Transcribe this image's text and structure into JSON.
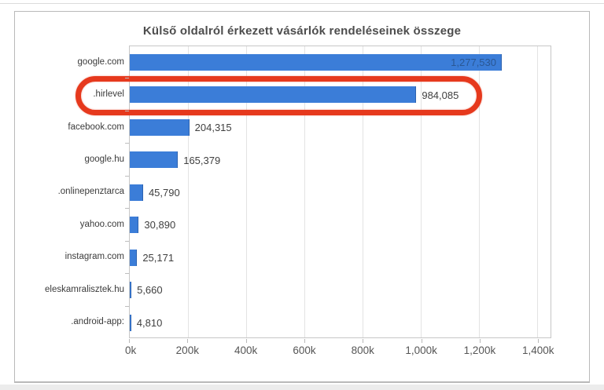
{
  "chart_data": {
    "type": "bar",
    "orientation": "horizontal",
    "title": "Külső oldalról érkezett vásárlók rendeléseinek összege",
    "xlabel": "",
    "ylabel": "",
    "grid": "vertical",
    "legend": "none",
    "xlim": [
      0,
      1400000
    ],
    "categories": [
      "google.com",
      ".hirlevel",
      "facebook.com",
      "google.hu",
      ".onlinepenztarca",
      "yahoo.com",
      "instagram.com",
      "eleskamralisztek.hu",
      ".android-app:"
    ],
    "values": [
      1277530,
      984085,
      204315,
      165379,
      45790,
      30890,
      25171,
      5660,
      4810
    ],
    "value_labels": [
      "1,277,530",
      "984,085",
      "204,315",
      "165,379",
      "45,790",
      "30,890",
      "25,171",
      "5,660",
      "4,810"
    ],
    "x_ticks": [
      {
        "value": 0,
        "label": "0k"
      },
      {
        "value": 200000,
        "label": "200k"
      },
      {
        "value": 400000,
        "label": "400k"
      },
      {
        "value": 600000,
        "label": "600k"
      },
      {
        "value": 800000,
        "label": "800k"
      },
      {
        "value": 1000000,
        "label": "1,000k"
      },
      {
        "value": 1200000,
        "label": "1,200k"
      },
      {
        "value": 1400000,
        "label": "1,400k"
      }
    ],
    "bar_color": "#3b7dd8",
    "value_label_color_outside": "#3f3f3f",
    "value_label_color_inside": "#2a5793",
    "highlight": {
      "target_category": ".hirlevel",
      "shape": "rounded-rectangle-outline",
      "color": "#e6391d"
    }
  }
}
